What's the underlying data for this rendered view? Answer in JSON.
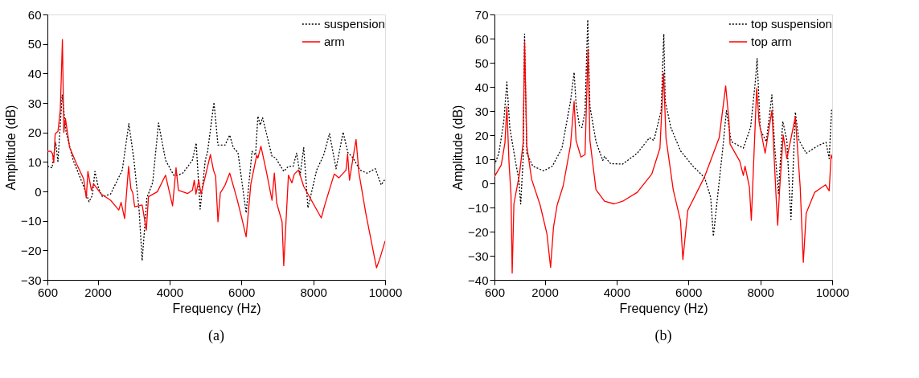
{
  "chart_data": [
    {
      "type": "line",
      "xlabel": "Frequency (Hz)",
      "ylabel": "Amplitude (dB)",
      "annotations": [
        "(a)"
      ],
      "xlim": [
        600,
        10000
      ],
      "xticks": [
        600,
        2000,
        4000,
        6000,
        8000,
        10000
      ],
      "ylim": [
        -30,
        60
      ],
      "yticks": [
        -30,
        -20,
        -10,
        0,
        10,
        20,
        30,
        40,
        50,
        60
      ],
      "grid": false,
      "legend": "top right",
      "series": [
        {
          "name": "suspension",
          "color": "#000000",
          "line_style": "dotted",
          "x": [
            600,
            730,
            828,
            893,
            1010,
            1121,
            1316,
            1609,
            1759,
            1850,
            1922,
            2019,
            2130,
            2358,
            2683,
            2866,
            3009,
            3152,
            3237,
            3367,
            3530,
            3692,
            3888,
            4115,
            4246,
            4376,
            4636,
            4740,
            4851,
            4994,
            5054,
            5236,
            5347,
            5543,
            5674,
            5772,
            5903,
            6131,
            6295,
            6393,
            6458,
            6524,
            6589,
            6851,
            6949,
            7178,
            7308,
            7439,
            7537,
            7635,
            7733,
            7851,
            8093,
            8289,
            8452,
            8635,
            8831,
            8962,
            9106,
            9302,
            9498,
            9727,
            9890,
            9988
          ],
          "values": [
            8.5,
            8,
            16.6,
            10.2,
            32.7,
            20,
            10.6,
            1.7,
            -3.5,
            -1.3,
            6.8,
            1.2,
            -1.8,
            -0.9,
            7.2,
            23,
            10.6,
            -6.4,
            -23.5,
            -2.2,
            3,
            23.2,
            10.6,
            5.5,
            5.5,
            6.3,
            10.6,
            16.4,
            -6,
            10.6,
            13.2,
            30.2,
            15.7,
            15.7,
            19.1,
            14.9,
            13.2,
            -7.3,
            13.6,
            12.3,
            25.5,
            22.5,
            25,
            11.9,
            11.4,
            6.8,
            8.5,
            8.5,
            13,
            5.5,
            14.9,
            -5.6,
            7.2,
            12.3,
            19.6,
            7.7,
            20.1,
            13.2,
            11.4,
            7.2,
            6.2,
            7.7,
            2.2,
            4
          ]
        },
        {
          "name": "arm",
          "color": "#ff0000",
          "line_style": "solid",
          "x": [
            600,
            698,
            743,
            776,
            815,
            893,
            958,
            1017,
            1056,
            1101,
            1218,
            1414,
            1609,
            1681,
            1726,
            1824,
            1889,
            2097,
            2358,
            2586,
            2651,
            2748,
            2859,
            2924,
            2976,
            3028,
            3237,
            3354,
            3412,
            3660,
            3888,
            4083,
            4180,
            4246,
            4506,
            4636,
            4688,
            4734,
            4812,
            4877,
            5137,
            5222,
            5282,
            5347,
            5413,
            5543,
            5674,
            5870,
            6001,
            6131,
            6262,
            6426,
            6458,
            6543,
            6687,
            6851,
            6916,
            6981,
            7131,
            7178,
            7308,
            7406,
            7472,
            7589,
            7733,
            7929,
            8223,
            8321,
            8583,
            8714,
            8910,
            8956,
            9008,
            9074,
            9191,
            9270,
            9466,
            9760,
            9858,
            10000
          ],
          "values": [
            13.6,
            13.6,
            12.7,
            9.7,
            19.5,
            20.4,
            27.6,
            51.5,
            20,
            24.7,
            14.9,
            9.3,
            4.2,
            -2.2,
            6.8,
            0.4,
            2.5,
            -0.9,
            -3,
            -6.3,
            -3.7,
            -9.2,
            8.5,
            0.9,
            -0.5,
            -5.2,
            -4.6,
            -13.1,
            -1.8,
            -0.1,
            5.5,
            -4.9,
            8,
            0.4,
            -0.7,
            0.4,
            3.8,
            -0.9,
            3.7,
            -0.9,
            12.5,
            7.2,
            5.1,
            -10.3,
            -0.5,
            2.1,
            6.2,
            -2.2,
            -8.6,
            -15.4,
            2.5,
            12.3,
            11.3,
            15.3,
            7.2,
            -3,
            6.2,
            -3.9,
            -10.3,
            -25.2,
            5.5,
            2.9,
            5.9,
            7.2,
            1.7,
            -2.6,
            -9,
            -4.6,
            5.9,
            4.6,
            7.2,
            12.7,
            3.8,
            8.9,
            17.6,
            6.4,
            -7.7,
            -25.9,
            -22.6,
            -16.8
          ]
        }
      ]
    },
    {
      "type": "line",
      "xlabel": "Frequency (Hz)",
      "ylabel": "Amplitude (dB)",
      "annotations": [
        "(b)"
      ],
      "xlim": [
        600,
        10000
      ],
      "xticks": [
        600,
        2000,
        4000,
        6000,
        8000,
        10000
      ],
      "ylim": [
        -40,
        70
      ],
      "yticks": [
        -40,
        -30,
        -20,
        -10,
        0,
        10,
        20,
        30,
        40,
        50,
        60,
        70
      ],
      "grid": false,
      "legend": "top right",
      "series": [
        {
          "name": "top suspension",
          "color": "#000000",
          "line_style": "dotted",
          "x": [
            600,
            722,
            857,
            945,
            1026,
            1195,
            1276,
            1330,
            1398,
            1438,
            1499,
            1668,
            1972,
            2209,
            2479,
            2716,
            2817,
            2871,
            2966,
            3034,
            3121,
            3196,
            3257,
            3426,
            3615,
            3662,
            3831,
            4169,
            4575,
            4913,
            5038,
            5240,
            5314,
            5354,
            5509,
            5778,
            6114,
            6451,
            6619,
            6693,
            6801,
            6956,
            7057,
            7191,
            7528,
            7730,
            7864,
            7911,
            7999,
            8167,
            8322,
            8403,
            8504,
            8625,
            8739,
            8853,
            8907,
            8975,
            9076,
            9278,
            9614,
            9829,
            9917,
            9984
          ],
          "values": [
            7.6,
            12.5,
            25.4,
            42,
            23.2,
            8.2,
            1.7,
            -8.5,
            10.3,
            61.9,
            12.5,
            7.1,
            5.2,
            7.1,
            14.6,
            34,
            46,
            32.9,
            23.8,
            23.2,
            29.7,
            67.8,
            31.8,
            17.3,
            9.5,
            11.2,
            8.2,
            8,
            12.5,
            18.9,
            17.8,
            30.2,
            61.9,
            34,
            23.2,
            13.5,
            7.3,
            2.3,
            -5.8,
            -21.9,
            -6.8,
            14.6,
            30.2,
            17.3,
            14.6,
            23.2,
            42.6,
            51.7,
            22.2,
            17.3,
            36.7,
            14.6,
            -4.2,
            25.7,
            17.8,
            -15,
            3.9,
            29.5,
            17.8,
            12.5,
            15.7,
            17,
            10.3,
            30.5
          ]
        },
        {
          "name": "top arm",
          "color": "#ff0000",
          "line_style": "solid",
          "x": [
            600,
            789,
            891,
            945,
            1006,
            1060,
            1093,
            1141,
            1296,
            1398,
            1438,
            1499,
            1634,
            1871,
            2060,
            2162,
            2243,
            2344,
            2513,
            2716,
            2817,
            2871,
            3006,
            3121,
            3203,
            3257,
            3426,
            3662,
            3933,
            4169,
            4575,
            4980,
            5206,
            5307,
            5374,
            5576,
            5778,
            5845,
            5980,
            6451,
            6855,
            7036,
            7124,
            7158,
            7427,
            7528,
            7575,
            7696,
            7750,
            7898,
            7966,
            8134,
            8322,
            8436,
            8484,
            8537,
            8638,
            8739,
            8975,
            9110,
            9197,
            9278,
            9514,
            9816,
            9917,
            9971,
            9998
          ],
          "values": [
            2.8,
            7.6,
            16.8,
            31.8,
            8.2,
            -4.7,
            -37.2,
            -8.5,
            3.9,
            16.8,
            58.7,
            15.7,
            1.7,
            -9,
            -20.9,
            -34.8,
            -18.2,
            -9,
            -1,
            15.7,
            34,
            17.8,
            10.9,
            11.9,
            55.5,
            17.8,
            -2.6,
            -7.4,
            -8.5,
            -7.4,
            -3.7,
            3.9,
            14.6,
            45.6,
            18.9,
            -2.6,
            -15.5,
            -31.6,
            -11.2,
            2.8,
            18.9,
            40.4,
            26.5,
            16.3,
            9.2,
            3.3,
            7.1,
            -1.5,
            -15.3,
            39.4,
            25.4,
            12.5,
            30.2,
            -4.7,
            -17.4,
            -2.6,
            20,
            10.3,
            27.5,
            -1.5,
            -32.7,
            -12.3,
            -3.7,
            -0.6,
            -3.1,
            11.9,
            10.3
          ]
        }
      ]
    }
  ]
}
